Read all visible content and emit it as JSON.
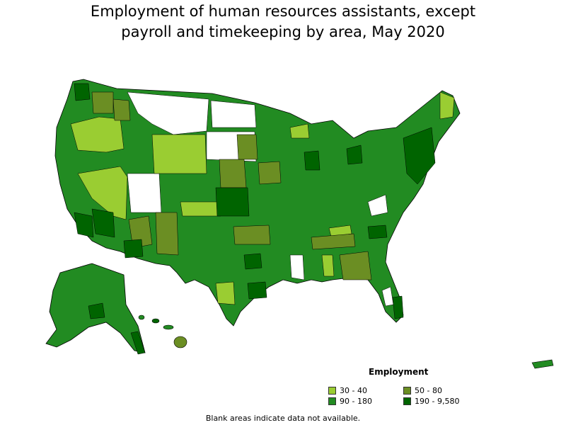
{
  "title_line1": "Employment of human resources assistants, except",
  "title_line2": "payroll and timekeeping by area, May 2020",
  "legend": {
    "title": "Employment",
    "items": [
      {
        "label": "30 - 40",
        "color": "#9acd32"
      },
      {
        "label": "50 - 80",
        "color": "#6b8e23"
      },
      {
        "label": "90 - 180",
        "color": "#228b22"
      },
      {
        "label": "190 - 9,580",
        "color": "#006400"
      }
    ]
  },
  "footnote": "Blank areas indicate data not available.",
  "colors": {
    "blank": "#ffffff",
    "border": "#000000"
  }
}
